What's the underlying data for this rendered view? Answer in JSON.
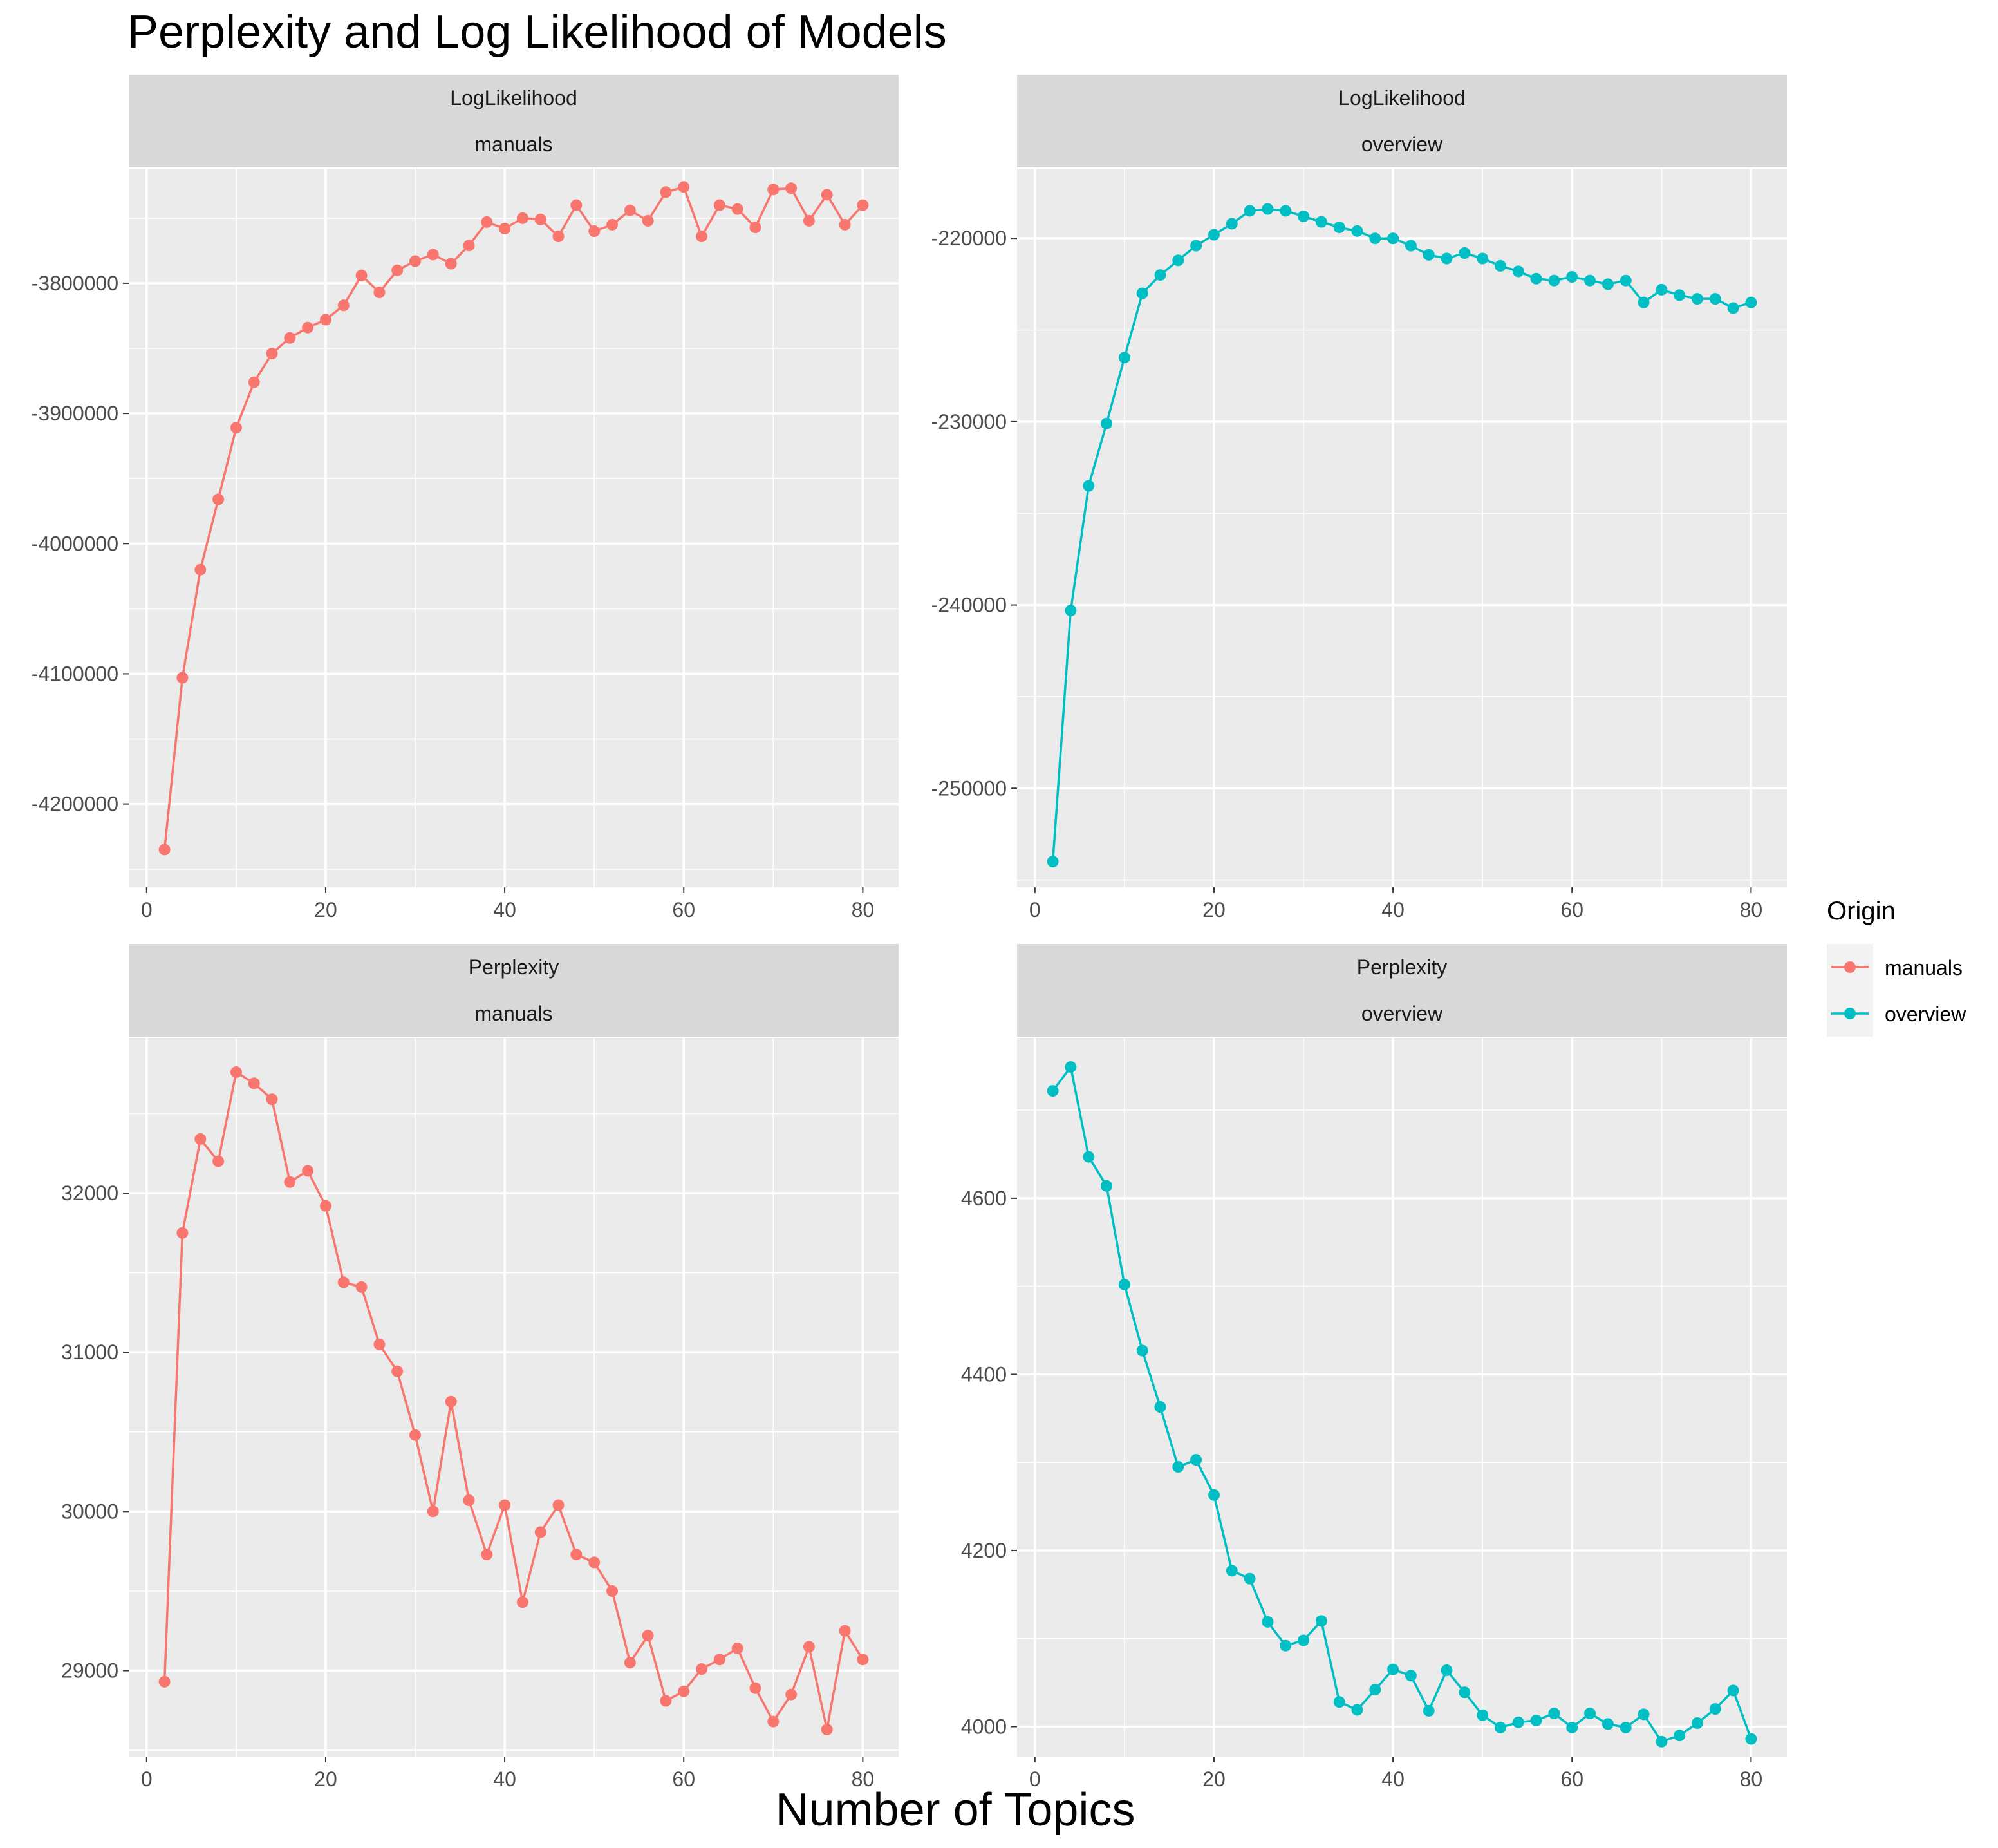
{
  "figure": {
    "title": "Perplexity and Log Likelihood of Models",
    "xlabel": "Number of Topics"
  },
  "legend": {
    "title": "Origin",
    "entries": [
      {
        "name": "manuals",
        "color": "#F8766D"
      },
      {
        "name": "overview",
        "color": "#00BFC4"
      }
    ]
  },
  "colors": {
    "panel_bg": "#EBEBEB",
    "strip_bg": "#D9D9D9",
    "grid": "#FFFFFF",
    "manuals": "#F8766D",
    "overview": "#00BFC4"
  },
  "chart_data": [
    {
      "type": "line",
      "strip": [
        "LogLikelihood",
        "manuals"
      ],
      "series": [
        {
          "name": "manuals",
          "color": "#F8766D"
        }
      ],
      "x": [
        2,
        4,
        6,
        8,
        10,
        12,
        14,
        16,
        18,
        20,
        22,
        24,
        26,
        28,
        30,
        32,
        34,
        36,
        38,
        40,
        42,
        44,
        46,
        48,
        50,
        52,
        54,
        56,
        58,
        60,
        62,
        64,
        66,
        68,
        70,
        72,
        74,
        76,
        78,
        80
      ],
      "y": [
        -4235000,
        -4103000,
        -4020000,
        -3966000,
        -3911000,
        -3876000,
        -3854000,
        -3842000,
        -3834000,
        -3828000,
        -3817000,
        -3794000,
        -3807000,
        -3790000,
        -3783000,
        -3778000,
        -3785000,
        -3771000,
        -3753000,
        -3758000,
        -3750000,
        -3751000,
        -3764000,
        -3740000,
        -3760000,
        -3755000,
        -3744000,
        -3752000,
        -3730000,
        -3726000,
        -3764000,
        -3740000,
        -3743000,
        -3757000,
        -3728000,
        -3727000,
        -3752000,
        -3732000,
        -3755000,
        -3740000
      ],
      "xlim": [
        -2,
        84
      ],
      "ylim": [
        -4264000,
        -3712000
      ],
      "xticks": [
        0,
        20,
        40,
        60,
        80
      ],
      "yticks": [
        -4200000,
        -4100000,
        -4000000,
        -3900000,
        -3800000
      ],
      "ytick_labels": [
        "-4200000",
        "-4100000",
        "-4000000",
        "-3900000",
        "-3800000"
      ]
    },
    {
      "type": "line",
      "strip": [
        "LogLikelihood",
        "overview"
      ],
      "series": [
        {
          "name": "overview",
          "color": "#00BFC4"
        }
      ],
      "x": [
        2,
        4,
        6,
        8,
        10,
        12,
        14,
        16,
        18,
        20,
        22,
        24,
        26,
        28,
        30,
        32,
        34,
        36,
        38,
        40,
        42,
        44,
        46,
        48,
        50,
        52,
        54,
        56,
        58,
        60,
        62,
        64,
        66,
        68,
        70,
        72,
        74,
        76,
        78,
        80
      ],
      "y": [
        -254000,
        -240300,
        -233500,
        -230100,
        -226500,
        -223000,
        -222000,
        -221200,
        -220400,
        -219800,
        -219200,
        -218500,
        -218400,
        -218500,
        -218800,
        -219100,
        -219400,
        -219600,
        -220000,
        -220000,
        -220400,
        -220900,
        -221100,
        -220800,
        -221100,
        -221500,
        -221800,
        -222200,
        -222300,
        -222100,
        -222300,
        -222500,
        -222300,
        -223500,
        -222800,
        -223100,
        -223300,
        -223300,
        -223800,
        -223500
      ],
      "xlim": [
        -2,
        84
      ],
      "ylim": [
        -255400,
        -216200
      ],
      "xticks": [
        0,
        20,
        40,
        60,
        80
      ],
      "yticks": [
        -250000,
        -240000,
        -230000,
        -220000
      ],
      "ytick_labels": [
        "-250000",
        "-240000",
        "-230000",
        "-220000"
      ]
    },
    {
      "type": "line",
      "strip": [
        "Perplexity",
        "manuals"
      ],
      "series": [
        {
          "name": "manuals",
          "color": "#F8766D"
        }
      ],
      "x": [
        2,
        4,
        6,
        8,
        10,
        12,
        14,
        16,
        18,
        20,
        22,
        24,
        26,
        28,
        30,
        32,
        34,
        36,
        38,
        40,
        42,
        44,
        46,
        48,
        50,
        52,
        54,
        56,
        58,
        60,
        62,
        64,
        66,
        68,
        70,
        72,
        74,
        76,
        78,
        80
      ],
      "y": [
        28930,
        31750,
        32340,
        32200,
        32760,
        32690,
        32590,
        32070,
        32140,
        31920,
        31440,
        31410,
        31050,
        30880,
        30480,
        30000,
        30690,
        30070,
        29730,
        30040,
        29430,
        29870,
        30040,
        29730,
        29680,
        29500,
        29050,
        29220,
        28810,
        28870,
        29010,
        29070,
        29140,
        28890,
        28680,
        28850,
        29150,
        28630,
        29250,
        29070
      ],
      "xlim": [
        -2,
        84
      ],
      "ylim": [
        28460,
        32975
      ],
      "xticks": [
        0,
        20,
        40,
        60,
        80
      ],
      "yticks": [
        29000,
        30000,
        31000,
        32000
      ],
      "ytick_labels": [
        "29000",
        "30000",
        "31000",
        "32000"
      ]
    },
    {
      "type": "line",
      "strip": [
        "Perplexity",
        "overview"
      ],
      "series": [
        {
          "name": "overview",
          "color": "#00BFC4"
        }
      ],
      "x": [
        2,
        4,
        6,
        8,
        10,
        12,
        14,
        16,
        18,
        20,
        22,
        24,
        26,
        28,
        30,
        32,
        34,
        36,
        38,
        40,
        42,
        44,
        46,
        48,
        50,
        52,
        54,
        56,
        58,
        60,
        62,
        64,
        66,
        68,
        70,
        72,
        74,
        76,
        78,
        80
      ],
      "y": [
        4722,
        4749,
        4647,
        4614,
        4502,
        4427,
        4363,
        4295,
        4303,
        4263,
        4177,
        4168,
        4119,
        4092,
        4098,
        4120,
        4028,
        4019,
        4042,
        4065,
        4058,
        4018,
        4064,
        4039,
        4013,
        3999,
        4005,
        4007,
        4015,
        3999,
        4015,
        4003,
        3999,
        4014,
        3983,
        3990,
        4004,
        4020,
        4041,
        3986
      ],
      "xlim": [
        -2,
        84
      ],
      "ylim": [
        3966,
        4782
      ],
      "xticks": [
        0,
        20,
        40,
        60,
        80
      ],
      "yticks": [
        4000,
        4200,
        4400,
        4600
      ],
      "ytick_labels": [
        "4000",
        "4200",
        "4400",
        "4600"
      ]
    }
  ]
}
